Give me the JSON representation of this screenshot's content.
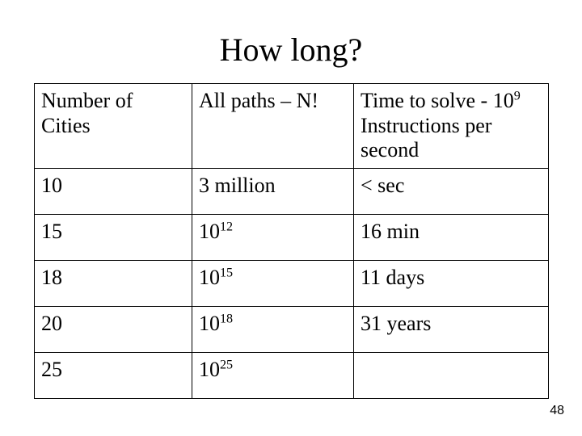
{
  "title": "How long?",
  "page_number": "48",
  "table": {
    "columns": [
      {
        "text": "Number of Cities"
      },
      {
        "text": "All paths – N!"
      },
      {
        "prefix": "Time to solve - 10",
        "sup": "9 ",
        "suffix": "Instructions per second"
      }
    ],
    "rows": [
      {
        "cities": "10",
        "paths": {
          "text": "3 million"
        },
        "time": "< sec"
      },
      {
        "cities": "15",
        "paths": {
          "base": "10",
          "sup": "12"
        },
        "time": "16 min"
      },
      {
        "cities": "18",
        "paths": {
          "base": "10",
          "sup": "15"
        },
        "time": "11 days"
      },
      {
        "cities": "20",
        "paths": {
          "base": "10",
          "sup": "18"
        },
        "time": "31 years"
      },
      {
        "cities": "25",
        "paths": {
          "base": "10",
          "sup": "25"
        },
        "time": ""
      }
    ],
    "border_color": "#000000",
    "font_family": "Times New Roman",
    "header_fontsize": 26,
    "cell_fontsize": 26,
    "background_color": "#ffffff"
  }
}
